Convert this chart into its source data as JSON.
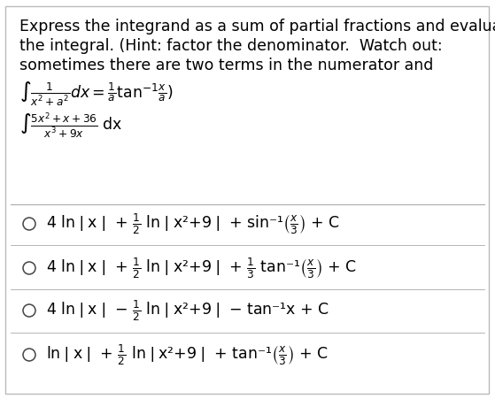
{
  "bg_color": "#ffffff",
  "border_color": "#bbbbbb",
  "title_lines": [
    "Express the integrand as a sum of partial fractions and evaluate",
    "the integral. (Hint: factor the denominator.  Watch out:",
    "sometimes there are two terms in the numerator and"
  ],
  "hint_formula": "$\\int \\frac{1}{x^2+a^2}dx = \\frac{1}{a}\\mathrm{tan}^{-1}\\frac{x}{a}$)",
  "integral_label": "$\\int \\frac{5x^2+x+36}{x^3+9x}\\;\\mathrm{dx}$",
  "options": [
    "4 ln❘x❘ + $\\frac{1}{2}$ ln❘x²+9❘ + sin⁻¹$\\left(\\frac{x}{3}\\right)$ + C",
    "4 ln❘x❘ + $\\frac{1}{2}$ ln❘x²+9❘ + $\\frac{1}{3}$ tan⁻¹$\\left(\\frac{x}{3}\\right)$ + C",
    "4 ln❘x❘ − $\\frac{1}{2}$ ln❘x²+9❘ − tan⁻¹x + C",
    "ln❘x❘ + $\\frac{1}{2}$ ln❘x²+9❘ + tan⁻¹$\\left(\\frac{x}{3}\\right)$ + C"
  ],
  "text_color": "#000000",
  "font_size_text": 12.5,
  "font_size_formula": 12.5,
  "font_size_options": 12.5
}
